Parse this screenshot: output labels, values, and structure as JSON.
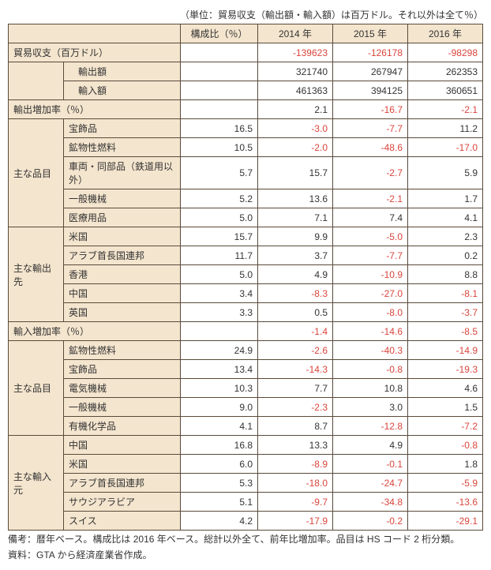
{
  "unitNote": "（単位：貿易収支（輸出額・輸入額）は百万ドル。それ以外は全て％）",
  "headers": {
    "ratio": "構成比（％）",
    "y2014": "2014 年",
    "y2015": "2015 年",
    "y2016": "2016 年"
  },
  "balance": {
    "label": "貿易収支（百万ドル）",
    "y2014": "-139623",
    "y2015": "-126178",
    "y2016": "-98298",
    "exportLabel": "輸出額",
    "export2014": "321740",
    "export2015": "267947",
    "export2016": "262353",
    "importLabel": "輸入額",
    "import2014": "461363",
    "import2015": "394125",
    "import2016": "360651"
  },
  "exportGrowth": {
    "label": "輸出増加率（％）",
    "y2014": "2.1",
    "y2015": "-16.7",
    "y2016": "-2.1"
  },
  "exportItems": {
    "label": "主な品目",
    "rows": [
      {
        "name": "宝飾品",
        "ratio": "16.5",
        "y2014": "-3.0",
        "y2015": "-7.7",
        "y2016": "11.2"
      },
      {
        "name": "鉱物性燃料",
        "ratio": "10.5",
        "y2014": "-2.0",
        "y2015": "-48.6",
        "y2016": "-17.0"
      },
      {
        "name": "車両・同部品（鉄道用以外）",
        "ratio": "5.7",
        "y2014": "15.7",
        "y2015": "-2.7",
        "y2016": "5.9"
      },
      {
        "name": "一般機械",
        "ratio": "5.2",
        "y2014": "13.6",
        "y2015": "-2.1",
        "y2016": "1.7"
      },
      {
        "name": "医療用品",
        "ratio": "5.0",
        "y2014": "7.1",
        "y2015": "7.4",
        "y2016": "4.1"
      }
    ]
  },
  "exportDest": {
    "label": "主な輸出先",
    "rows": [
      {
        "name": "米国",
        "ratio": "15.7",
        "y2014": "9.9",
        "y2015": "-5.0",
        "y2016": "2.3"
      },
      {
        "name": "アラブ首長国連邦",
        "ratio": "11.7",
        "y2014": "3.7",
        "y2015": "-7.7",
        "y2016": "0.2"
      },
      {
        "name": "香港",
        "ratio": "5.0",
        "y2014": "4.9",
        "y2015": "-10.9",
        "y2016": "8.8"
      },
      {
        "name": "中国",
        "ratio": "3.4",
        "y2014": "-8.3",
        "y2015": "-27.0",
        "y2016": "-8.1"
      },
      {
        "name": "英国",
        "ratio": "3.3",
        "y2014": "0.5",
        "y2015": "-8.0",
        "y2016": "-3.7"
      }
    ]
  },
  "importGrowth": {
    "label": "輸入増加率（％）",
    "y2014": "-1.4",
    "y2015": "-14.6",
    "y2016": "-8.5"
  },
  "importItems": {
    "label": "主な品目",
    "rows": [
      {
        "name": "鉱物性燃料",
        "ratio": "24.9",
        "y2014": "-2.6",
        "y2015": "-40.3",
        "y2016": "-14.9"
      },
      {
        "name": "宝飾品",
        "ratio": "13.4",
        "y2014": "-14.3",
        "y2015": "-0.8",
        "y2016": "-19.3"
      },
      {
        "name": "電気機械",
        "ratio": "10.3",
        "y2014": "7.7",
        "y2015": "10.8",
        "y2016": "4.6"
      },
      {
        "name": "一般機械",
        "ratio": "9.0",
        "y2014": "-2.3",
        "y2015": "3.0",
        "y2016": "1.5"
      },
      {
        "name": "有機化学品",
        "ratio": "4.1",
        "y2014": "8.7",
        "y2015": "-12.8",
        "y2016": "-7.2"
      }
    ]
  },
  "importSrc": {
    "label": "主な輸入元",
    "rows": [
      {
        "name": "中国",
        "ratio": "16.8",
        "y2014": "13.3",
        "y2015": "4.9",
        "y2016": "-0.8"
      },
      {
        "name": "米国",
        "ratio": "6.0",
        "y2014": "-8.9",
        "y2015": "-0.1",
        "y2016": "1.8"
      },
      {
        "name": "アラブ首長国連邦",
        "ratio": "5.3",
        "y2014": "-18.0",
        "y2015": "-24.7",
        "y2016": "-5.9"
      },
      {
        "name": "サウジアラビア",
        "ratio": "5.1",
        "y2014": "-9.7",
        "y2015": "-34.8",
        "y2016": "-13.6"
      },
      {
        "name": "スイス",
        "ratio": "4.2",
        "y2014": "-17.9",
        "y2015": "-0.2",
        "y2016": "-29.1"
      }
    ]
  },
  "footnote1": "備考：暦年ベース。構成比は 2016 年ベース。総計以外全て、前年比増加率。品目は HS コード 2 桁分類。",
  "footnote2": "資料：GTA から経済産業省作成。"
}
